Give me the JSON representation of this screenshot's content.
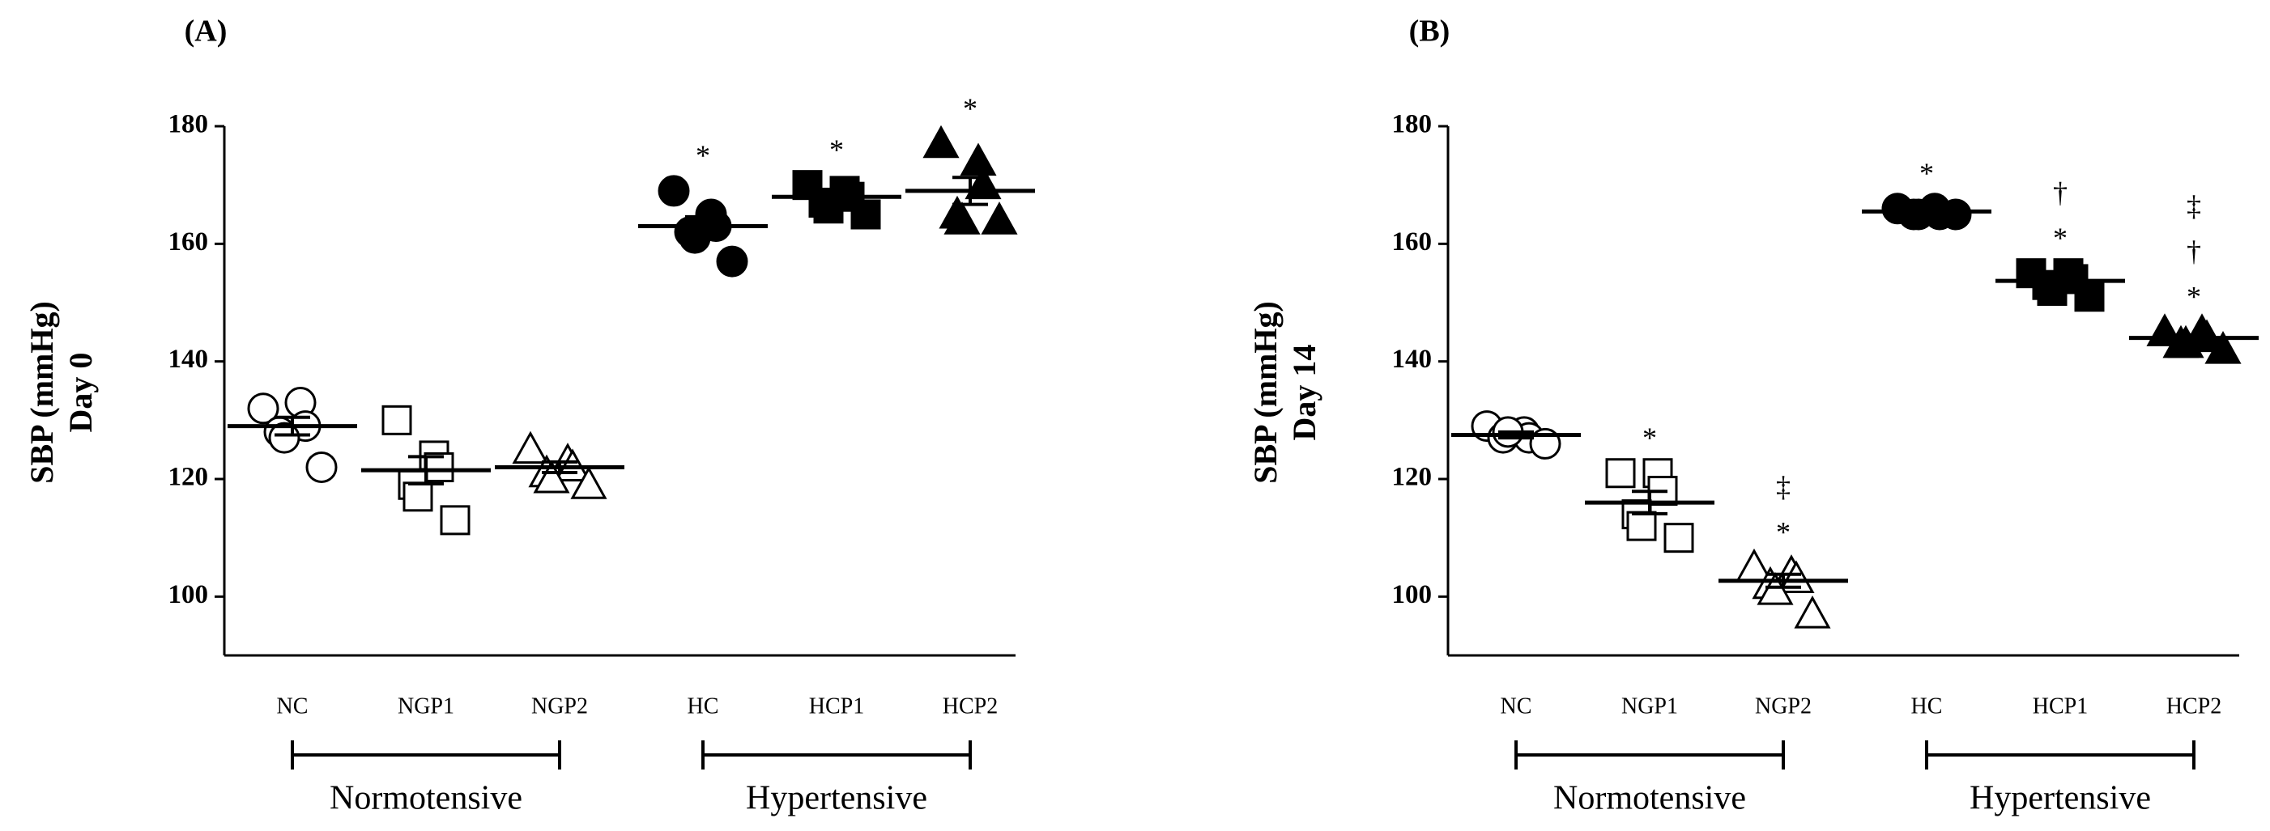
{
  "chart_data": [
    {
      "type": "scatter",
      "title": "(A)",
      "ylabel_lines": [
        "SBP (mmHg)",
        "Day 0"
      ],
      "ylim": [
        90,
        180
      ],
      "yticks": [
        100,
        120,
        140,
        160,
        180
      ],
      "groups": [
        {
          "label": "Normotensive",
          "members": [
            {
              "name": "NC",
              "marker": "circle",
              "filled": false,
              "values": [
                132,
                133,
                129,
                128,
                127,
                122
              ],
              "mean": 129,
              "sem": 1.5,
              "annotations": []
            },
            {
              "name": "NGP1",
              "marker": "square",
              "filled": false,
              "values": [
                130,
                124,
                122,
                119,
                117,
                113
              ],
              "mean": 121.5,
              "sem": 2.3,
              "annotations": []
            },
            {
              "name": "NGP2",
              "marker": "triangle",
              "filled": false,
              "values": [
                125,
                123,
                122,
                121,
                120,
                119
              ],
              "mean": 122,
              "sem": 0.9,
              "annotations": []
            }
          ]
        },
        {
          "label": "Hypertensive",
          "members": [
            {
              "name": "HC",
              "marker": "circle",
              "filled": true,
              "values": [
                169,
                165,
                163,
                162,
                161,
                157
              ],
              "mean": 163,
              "sem": 1.6,
              "annotations": [
                "*"
              ]
            },
            {
              "name": "HCP1",
              "marker": "square",
              "filled": true,
              "values": [
                170,
                169,
                168,
                167,
                166,
                165
              ],
              "mean": 168,
              "sem": 0.8,
              "annotations": [
                "*"
              ]
            },
            {
              "name": "HCP2",
              "marker": "triangle",
              "filled": true,
              "values": [
                177,
                174,
                170,
                165,
                164,
                164
              ],
              "mean": 169,
              "sem": 2.3,
              "annotations": [
                "*"
              ]
            }
          ]
        }
      ]
    },
    {
      "type": "scatter",
      "title": "(B)",
      "ylabel_lines": [
        "SBP (mmHg)",
        "Day 14"
      ],
      "ylim": [
        90,
        180
      ],
      "yticks": [
        100,
        120,
        140,
        160,
        180
      ],
      "groups": [
        {
          "label": "Normotensive",
          "members": [
            {
              "name": "NC",
              "marker": "circle",
              "filled": false,
              "values": [
                129,
                128,
                127,
                127,
                128,
                126
              ],
              "mean": 127.5,
              "sem": 0.5,
              "annotations": []
            },
            {
              "name": "NGP1",
              "marker": "square",
              "filled": false,
              "values": [
                121,
                121,
                118,
                114,
                112,
                110
              ],
              "mean": 116,
              "sem": 1.9,
              "annotations": [
                "*"
              ]
            },
            {
              "name": "NGP2",
              "marker": "triangle",
              "filled": false,
              "values": [
                105,
                104,
                103,
                102,
                101,
                97
              ],
              "mean": 102.7,
              "sem": 1.1,
              "annotations": [
                "‡",
                "*"
              ]
            }
          ]
        },
        {
          "label": "Hypertensive",
          "members": [
            {
              "name": "HC",
              "marker": "circle",
              "filled": true,
              "values": [
                166,
                166,
                165,
                165,
                165,
                165
              ],
              "mean": 165.5,
              "sem": 0.3,
              "annotations": [
                "*"
              ]
            },
            {
              "name": "HCP1",
              "marker": "square",
              "filled": true,
              "values": [
                155,
                155,
                154,
                153,
                152,
                151
              ],
              "mean": 153.7,
              "sem": 0.7,
              "annotations": [
                "†",
                "*"
              ]
            },
            {
              "name": "HCP2",
              "marker": "triangle",
              "filled": true,
              "values": [
                145,
                145,
                144,
                143,
                143,
                142
              ],
              "mean": 144,
              "sem": 0.5,
              "annotations": [
                "‡",
                "†",
                "*"
              ]
            }
          ]
        }
      ]
    }
  ]
}
